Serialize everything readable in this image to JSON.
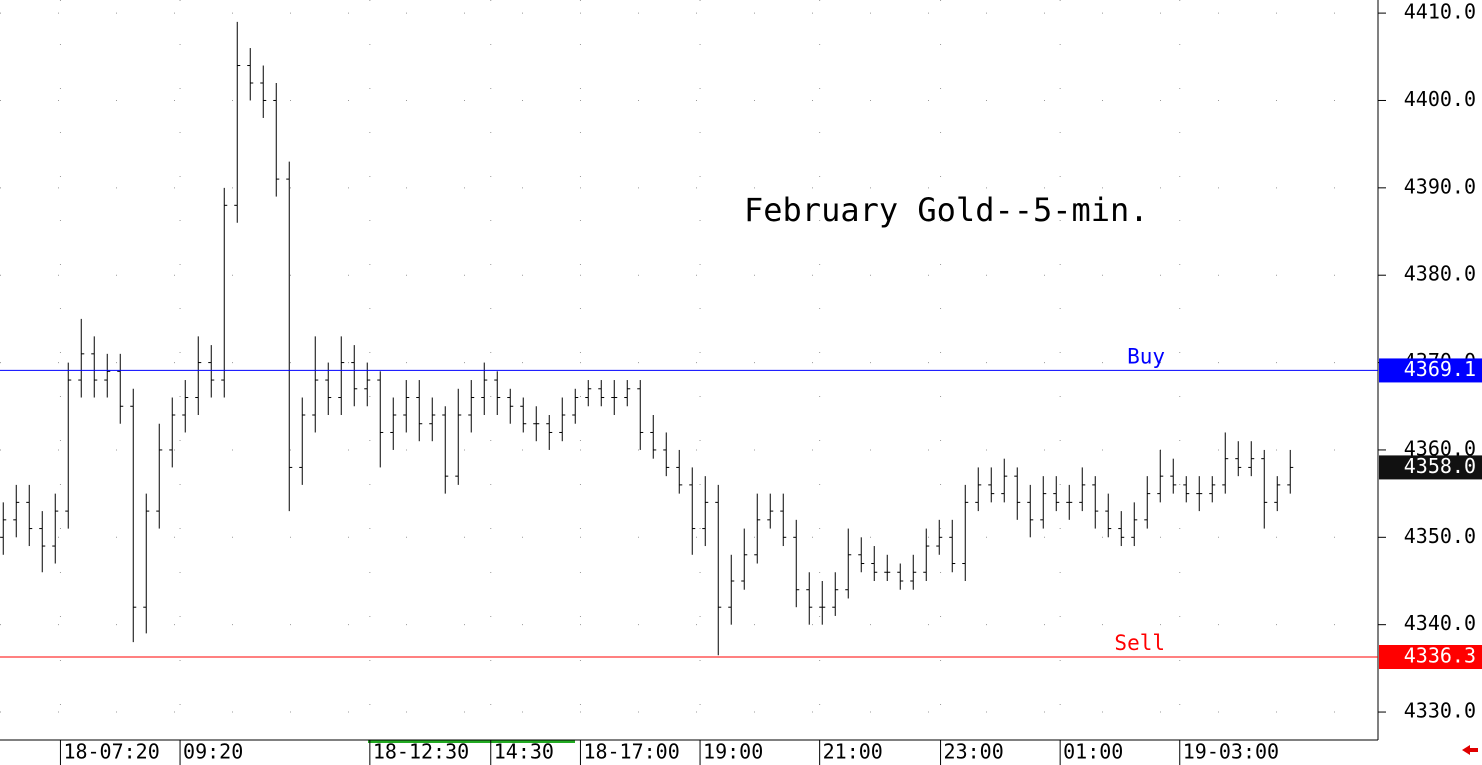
{
  "chart_data": {
    "type": "ohlc",
    "title": "February Gold--5-min.",
    "color": "#000000",
    "grid": true,
    "xlim": [
      -0.25,
      105.75
    ],
    "xticks": [
      {
        "value": 4.4,
        "label": "18-07:20"
      },
      {
        "value": 13.6,
        "label": "09:20"
      },
      {
        "value": 28.2,
        "label": "18-12:30"
      },
      {
        "value": 37.5,
        "label": "14:30"
      },
      {
        "value": 44.4,
        "label": "18-17:00"
      },
      {
        "value": 53.6,
        "label": "19:00"
      },
      {
        "value": 62.8,
        "label": "21:00"
      },
      {
        "value": 72.1,
        "label": "23:00"
      },
      {
        "value": 81.3,
        "label": "01:00"
      },
      {
        "value": 90.5,
        "label": "19-03:00"
      }
    ],
    "ylim": [
      4326.8,
      4411.5
    ],
    "yticks": [
      {
        "value": 4330,
        "label": "4330.0"
      },
      {
        "value": 4340,
        "label": "4340.0"
      },
      {
        "value": 4350,
        "label": "4350.0"
      },
      {
        "value": 4360,
        "label": "4360.0"
      },
      {
        "value": 4370,
        "label": "4370.0"
      },
      {
        "value": 4380,
        "label": "4380.0"
      },
      {
        "value": 4390,
        "label": "4390.0"
      },
      {
        "value": 4400,
        "label": "4400.0"
      },
      {
        "value": 4410,
        "label": "4410.0"
      }
    ],
    "open": [
      4350,
      4352,
      4354,
      4351,
      4349,
      4353,
      4368,
      4371,
      4368,
      4369,
      4365,
      4342,
      4353,
      4360,
      4364,
      4366,
      4370,
      4368,
      4388,
      4404,
      4402,
      4400,
      4391,
      4358,
      4364,
      4368,
      4366,
      4370,
      4367,
      4368,
      4362,
      4364,
      4366,
      4363,
      4364,
      4357,
      4364,
      4366,
      4368,
      4366,
      4365,
      4363,
      4363,
      4362,
      4364,
      4366,
      4367,
      4366,
      4366,
      4367,
      4362,
      4360,
      4358,
      4356,
      4351,
      4354,
      4342,
      4345,
      4348,
      4352,
      4353,
      4350,
      4344,
      4342,
      4342,
      4344,
      4348,
      4347,
      4346,
      4346,
      4345,
      4346,
      4349,
      4350,
      4347,
      4354,
      4356,
      4355,
      4357,
      4354,
      4352,
      4355,
      4354,
      4354,
      4356,
      4353,
      4351,
      4350,
      4352,
      4355,
      4357,
      4356,
      4355,
      4355,
      4356,
      4359,
      4358,
      4359,
      4354,
      4356
    ],
    "high": [
      4354,
      4356,
      4356,
      4353,
      4355,
      4370,
      4375,
      4373,
      4371,
      4371,
      4367,
      4355,
      4363,
      4366,
      4368,
      4373,
      4372,
      4390,
      4409,
      4406,
      4404,
      4402,
      4393,
      4366,
      4373,
      4370,
      4373,
      4372,
      4370,
      4369,
      4366,
      4368,
      4368,
      4366,
      4365,
      4367,
      4368,
      4370,
      4369,
      4367,
      4366,
      4365,
      4364,
      4366,
      4367,
      4368,
      4368,
      4368,
      4368,
      4368,
      4364,
      4362,
      4360,
      4358,
      4357,
      4356,
      4348,
      4351,
      4355,
      4355,
      4355,
      4352,
      4346,
      4345,
      4346,
      4351,
      4350,
      4349,
      4348,
      4347,
      4348,
      4351,
      4352,
      4352,
      4356,
      4358,
      4358,
      4359,
      4358,
      4356,
      4357,
      4357,
      4356,
      4358,
      4357,
      4355,
      4353,
      4354,
      4357,
      4360,
      4359,
      4357,
      4357,
      4357,
      4362,
      4361,
      4361,
      4360,
      4357,
      4360
    ],
    "low": [
      4348,
      4350,
      4349,
      4346,
      4347,
      4351,
      4366,
      4366,
      4366,
      4363,
      4338,
      4339,
      4351,
      4358,
      4362,
      4364,
      4366,
      4366,
      4386,
      4400,
      4398,
      4389,
      4353,
      4356,
      4362,
      4364,
      4364,
      4365,
      4365,
      4358,
      4360,
      4362,
      4361,
      4361,
      4355,
      4356,
      4362,
      4364,
      4364,
      4363,
      4362,
      4361,
      4360,
      4361,
      4363,
      4365,
      4365,
      4364,
      4365,
      4360,
      4359,
      4357,
      4355,
      4348,
      4349,
      4336.5,
      4340,
      4344,
      4347,
      4351,
      4349,
      4342,
      4340,
      4340,
      4341,
      4343,
      4346,
      4345,
      4345,
      4344,
      4344,
      4345,
      4348,
      4346,
      4345,
      4353,
      4354,
      4354,
      4352,
      4350,
      4351,
      4353,
      4352,
      4353,
      4351,
      4350,
      4349,
      4349,
      4351,
      4354,
      4355,
      4354,
      4353,
      4354,
      4355,
      4357,
      4357,
      4351,
      4353,
      4355
    ],
    "close": [
      4352,
      4354,
      4351,
      4349,
      4353,
      4368,
      4371,
      4368,
      4369,
      4365,
      4342,
      4353,
      4360,
      4364,
      4366,
      4370,
      4368,
      4388,
      4404,
      4402,
      4400,
      4391,
      4358,
      4364,
      4368,
      4366,
      4370,
      4367,
      4368,
      4362,
      4364,
      4366,
      4363,
      4364,
      4357,
      4364,
      4366,
      4368,
      4366,
      4365,
      4363,
      4363,
      4362,
      4364,
      4366,
      4367,
      4366,
      4366,
      4367,
      4362,
      4360,
      4358,
      4356,
      4351,
      4354,
      4342,
      4345,
      4348,
      4352,
      4353,
      4350,
      4344,
      4342,
      4342,
      4344,
      4348,
      4347,
      4346,
      4346,
      4345,
      4346,
      4349,
      4350,
      4347,
      4354,
      4356,
      4355,
      4357,
      4354,
      4352,
      4355,
      4354,
      4354,
      4356,
      4353,
      4351,
      4350,
      4352,
      4355,
      4357,
      4356,
      4355,
      4355,
      4356,
      4359,
      4358,
      4359,
      4354,
      4356,
      4358
    ],
    "hlines": [
      {
        "name": "Buy",
        "value": 4369.1,
        "color": "#0000ff"
      },
      {
        "name": "Sell",
        "value": 4336.3,
        "color": "#ff0000"
      }
    ],
    "last": {
      "value": 4358,
      "label": "4358.0"
    }
  }
}
